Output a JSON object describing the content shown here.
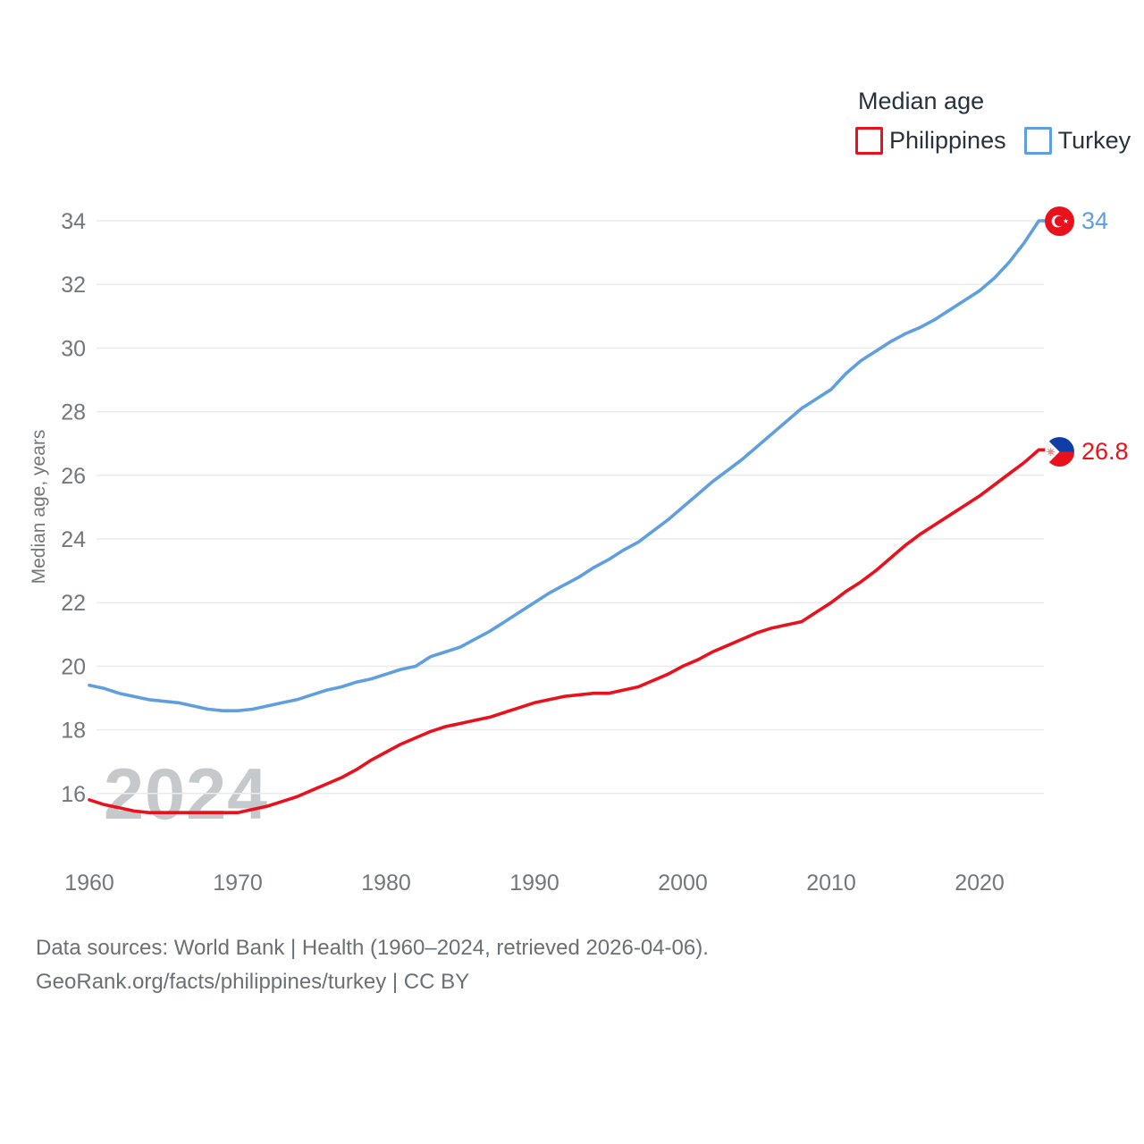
{
  "legend": {
    "title": "Median age",
    "items": [
      {
        "label": "Philippines",
        "color": "#ea111c"
      },
      {
        "label": "Turkey",
        "color": "#5f9fdf"
      }
    ]
  },
  "watermark": "2024",
  "end_labels": {
    "turkey": {
      "value": "34",
      "color": "#5f9fdf"
    },
    "philippines": {
      "value": "26.8",
      "color": "#ea111c"
    }
  },
  "footer": {
    "line1": "Data sources: World Bank | Health (1960–2024, retrieved 2026-04-06).",
    "line2": "GeoRank.org/facts/philippines/turkey | CC BY"
  },
  "chart_data": {
    "type": "line",
    "title": "Median age",
    "xlabel": "",
    "ylabel": "Median age, years",
    "ylim": [
      15,
      35
    ],
    "xlim": [
      1960,
      2024
    ],
    "grid": true,
    "legend_position": "top-right",
    "y_ticks": [
      16,
      18,
      20,
      22,
      24,
      26,
      28,
      30,
      32,
      34
    ],
    "x_ticks": [
      1960,
      1970,
      1980,
      1990,
      2000,
      2010,
      2020
    ],
    "x": [
      1960,
      1961,
      1962,
      1963,
      1964,
      1965,
      1966,
      1967,
      1968,
      1969,
      1970,
      1971,
      1972,
      1973,
      1974,
      1975,
      1976,
      1977,
      1978,
      1979,
      1980,
      1981,
      1982,
      1983,
      1984,
      1985,
      1986,
      1987,
      1988,
      1989,
      1990,
      1991,
      1992,
      1993,
      1994,
      1995,
      1996,
      1997,
      1998,
      1999,
      2000,
      2001,
      2002,
      2003,
      2004,
      2005,
      2006,
      2007,
      2008,
      2009,
      2010,
      2011,
      2012,
      2013,
      2014,
      2015,
      2016,
      2017,
      2018,
      2019,
      2020,
      2021,
      2022,
      2023,
      2024
    ],
    "series": [
      {
        "name": "Turkey",
        "color": "#5f9fdf",
        "end_label": "34",
        "values": [
          19.4,
          19.3,
          19.15,
          19.05,
          18.95,
          18.9,
          18.85,
          18.75,
          18.65,
          18.6,
          18.6,
          18.65,
          18.75,
          18.85,
          18.95,
          19.1,
          19.25,
          19.35,
          19.5,
          19.6,
          19.75,
          19.9,
          20.0,
          20.3,
          20.45,
          20.6,
          20.85,
          21.1,
          21.4,
          21.7,
          22.0,
          22.3,
          22.55,
          22.8,
          23.1,
          23.35,
          23.65,
          23.9,
          24.25,
          24.6,
          25.0,
          25.4,
          25.8,
          26.15,
          26.5,
          26.9,
          27.3,
          27.7,
          28.1,
          28.4,
          28.7,
          29.2,
          29.6,
          29.9,
          30.2,
          30.45,
          30.65,
          30.9,
          31.2,
          31.5,
          31.8,
          32.2,
          32.7,
          33.3,
          34.0
        ]
      },
      {
        "name": "Philippines",
        "color": "#ea111c",
        "end_label": "26.8",
        "values": [
          15.8,
          15.65,
          15.55,
          15.45,
          15.4,
          15.4,
          15.4,
          15.4,
          15.4,
          15.4,
          15.4,
          15.5,
          15.6,
          15.75,
          15.9,
          16.1,
          16.3,
          16.5,
          16.75,
          17.05,
          17.3,
          17.55,
          17.75,
          17.95,
          18.1,
          18.2,
          18.3,
          18.4,
          18.55,
          18.7,
          18.85,
          18.95,
          19.05,
          19.1,
          19.15,
          19.15,
          19.25,
          19.35,
          19.55,
          19.75,
          20.0,
          20.2,
          20.45,
          20.65,
          20.85,
          21.05,
          21.2,
          21.3,
          21.4,
          21.7,
          22.0,
          22.35,
          22.65,
          23.0,
          23.4,
          23.8,
          24.15,
          24.45,
          24.75,
          25.05,
          25.35,
          25.7,
          26.05,
          26.4,
          26.8
        ]
      }
    ]
  }
}
